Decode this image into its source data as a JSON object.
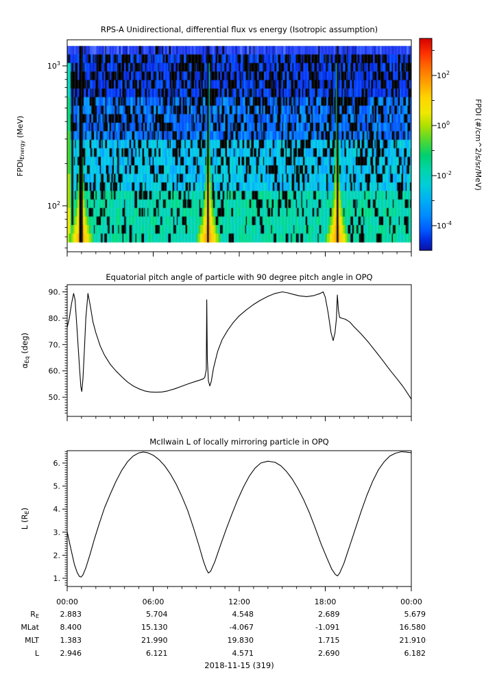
{
  "figure": {
    "kind": "three-panel scientific time-series figure, white background, black axes",
    "date_label": "2018-11-15 (319)"
  },
  "panels": {
    "spectrogram": {
      "title": "RPS-A Unidirectional, differential flux vs energy (Isotropic assumption)",
      "ylabel": {
        "pre": "FPDI",
        "sub": "Energy",
        "post": " (MeV)"
      },
      "ytick_labels": [
        {
          "base": "10",
          "exp": "2"
        },
        {
          "base": "10",
          "exp": "3"
        }
      ],
      "colorbar": {
        "label": "FPDI (#/cm^2/s/sr/MeV)",
        "tick_labels": [
          {
            "base": "10",
            "exp": "2"
          },
          {
            "base": "10",
            "exp": "0"
          },
          {
            "base": "10",
            "exp": "-2"
          },
          {
            "base": "10",
            "exp": "-4"
          }
        ]
      }
    },
    "pitch": {
      "title": "Equatorial pitch angle of particle with 90 degree pitch angle in OPQ",
      "ylabel": {
        "pre": "α",
        "sub": "Eq",
        "post": " (deg)"
      },
      "ytick_labels": [
        "50.",
        "60.",
        "70.",
        "80.",
        "90."
      ]
    },
    "mcilwain": {
      "title": "McIlwain L of locally mirroring particle in OPQ",
      "ylabel": {
        "pre": "L (R",
        "sub": "E",
        "post": ")"
      },
      "ytick_labels": [
        "1.",
        "2.",
        "3.",
        "4.",
        "5.",
        "6."
      ]
    }
  },
  "xaxis": {
    "tick_labels": [
      "00:00",
      "06:00",
      "12:00",
      "18:00",
      "00:00"
    ],
    "hours": [
      0,
      6,
      12,
      18,
      24
    ]
  },
  "footer": {
    "rows": [
      {
        "label_pre": "R",
        "label_sub": "E",
        "values": [
          "2.883",
          "5.704",
          "4.548",
          "2.689",
          "5.679"
        ]
      },
      {
        "label_pre": "MLat",
        "label_sub": "",
        "values": [
          "8.400",
          "15.130",
          "-4.067",
          "-1.091",
          "16.580"
        ]
      },
      {
        "label_pre": "MLT",
        "label_sub": "",
        "values": [
          "1.383",
          "21.990",
          "19.830",
          "1.715",
          "21.910"
        ]
      },
      {
        "label_pre": "L",
        "label_sub": "",
        "values": [
          "2.946",
          "6.121",
          "4.571",
          "2.690",
          "6.182"
        ]
      }
    ]
  },
  "chart_data": [
    {
      "panel": "spectrogram",
      "type": "heatmap",
      "title": "RPS-A Unidirectional, differential flux vs energy (Isotropic assumption)",
      "xlabel_hours_range": [
        0,
        24
      ],
      "ylabel": "FPDI_Energy (MeV)",
      "yscale": "log",
      "axis_energy_range_MeV": [
        46,
        1535
      ],
      "data_energy_range_MeV": [
        55,
        1390
      ],
      "ytick_values_MeV": [
        100,
        1000
      ],
      "colorbar": {
        "label": "FPDI (#/cm^2/s/sr/MeV)",
        "scale": "log",
        "tick_values": [
          100,
          1,
          0.01,
          0.0001
        ],
        "minor_tick_exponents": [
          3,
          1,
          -1,
          -3
        ],
        "approx_value_range": [
          1e-05,
          3000
        ],
        "colormap": "jet",
        "gradient": [
          {
            "p": 0.0,
            "c": "#d40000"
          },
          {
            "p": 0.069,
            "c": "#ff3000"
          },
          {
            "p": 0.139,
            "c": "#ff6e00"
          },
          {
            "p": 0.21,
            "c": "#ffa100"
          },
          {
            "p": 0.281,
            "c": "#ffd600"
          },
          {
            "p": 0.351,
            "c": "#f0e800"
          },
          {
            "p": 0.41,
            "c": "#b0e000"
          },
          {
            "p": 0.481,
            "c": "#52d830"
          },
          {
            "p": 0.552,
            "c": "#00d070"
          },
          {
            "p": 0.622,
            "c": "#00d4ac"
          },
          {
            "p": 0.693,
            "c": "#00cdd8"
          },
          {
            "p": 0.764,
            "c": "#00aef4"
          },
          {
            "p": 0.834,
            "c": "#008cff"
          },
          {
            "p": 0.905,
            "c": "#0058ff"
          },
          {
            "p": 0.952,
            "c": "#002ce0"
          },
          {
            "p": 0.999,
            "c": "#0d12a0"
          }
        ]
      },
      "content_description": "Noisy blue/cyan/black column texture; solid blue band at highest energies; bright yellow-green fan-shaped flux enhancements (inner proton belt crossings) centered at perigee times, widening toward low energy, each with a narrow black data-gap column at its center.",
      "render": {
        "seed": 7,
        "n_rows": 23,
        "fan_times_h": [
          0.97,
          9.82,
          18.8
        ],
        "fan_gap_halfwidth_h": [
          0.1,
          0.05,
          0.06
        ],
        "black_column_times_h": [
          2.7,
          13.05,
          19.5
        ],
        "fan_palette": [
          "#ffaf00",
          "#ffd400",
          "#e9e800",
          "#a0df00",
          "#3ad628",
          "#00d878",
          "#00d8b8"
        ],
        "top_band_palette": [
          "#1d3af0",
          "#2e52ff",
          "#0b23c8",
          "#4a6bff",
          "#000000"
        ],
        "noise_palettes": [
          [
            "#0028dc",
            "#0040ff",
            "#0634f2",
            "#0050ff"
          ],
          [
            "#0050ff",
            "#0072ff",
            "#0096ff",
            "#0060fa"
          ],
          [
            "#00a8ff",
            "#00c6f2",
            "#00d2d4",
            "#00c8e6"
          ],
          [
            "#00d2c0",
            "#00d8a0",
            "#00dc84",
            "#00d4b6"
          ]
        ]
      }
    },
    {
      "panel": "pitch",
      "type": "line",
      "title": "Equatorial pitch angle of particle with 90 degree pitch angle in OPQ",
      "ylabel": "alpha_Eq (deg)",
      "ylim": [
        43.0,
        92.7
      ],
      "yticks": [
        50,
        60,
        70,
        80,
        90
      ],
      "line_color": "#000000",
      "x_hours": [
        0,
        0.15,
        0.3,
        0.45,
        0.55,
        0.7,
        0.85,
        0.95,
        1.02,
        1.1,
        1.2,
        1.3,
        1.45,
        1.6,
        1.8,
        2,
        2.3,
        2.6,
        3,
        3.4,
        3.8,
        4.2,
        4.6,
        5,
        5.4,
        5.8,
        6.2,
        6.6,
        7,
        7.5,
        8,
        8.5,
        9,
        9.3,
        9.5,
        9.6,
        9.7,
        9.735,
        9.77,
        9.85,
        9.95,
        10.05,
        10.2,
        10.5,
        10.8,
        11.2,
        11.6,
        12,
        12.5,
        13,
        13.5,
        14,
        14.5,
        15,
        15.4,
        15.8,
        16.2,
        16.7,
        17.2,
        17.6,
        17.85,
        18,
        18.2,
        18.4,
        18.55,
        18.68,
        18.78,
        18.84,
        18.92,
        19,
        19.15,
        19.4,
        19.7,
        20,
        20.5,
        21,
        21.5,
        22,
        22.5,
        23,
        23.4,
        23.7,
        24
      ],
      "y_deg": [
        76.5,
        80,
        85.5,
        89.4,
        87,
        75,
        62,
        54,
        52.2,
        57,
        68,
        80,
        89.4,
        85,
        78.5,
        74.5,
        69.5,
        66,
        62.5,
        60,
        57.8,
        55.8,
        54.3,
        53.2,
        52.4,
        52,
        51.9,
        52,
        52.4,
        53.2,
        54.2,
        55.2,
        56.1,
        56.6,
        57,
        57.6,
        60.5,
        87,
        65,
        56.2,
        54.3,
        56,
        61,
        67.5,
        71.8,
        75.5,
        78.5,
        80.9,
        83.2,
        85.2,
        86.9,
        88.3,
        89.4,
        90,
        89.6,
        89,
        88.5,
        88.2,
        88.6,
        89.3,
        90,
        88,
        82,
        74.5,
        71.5,
        74.5,
        80,
        88.8,
        83,
        80.3,
        80,
        79.6,
        78.6,
        76.8,
        74,
        70.9,
        67.5,
        64,
        60.4,
        57,
        54.2,
        51.8,
        49.3
      ]
    },
    {
      "panel": "mcilwain",
      "type": "line",
      "title": "McIlwain L of locally mirroring particle in OPQ",
      "ylabel": "L (R_E)",
      "ylim": [
        0.64,
        6.54
      ],
      "yticks": [
        1,
        2,
        3,
        4,
        5,
        6
      ],
      "line_color": "#000000",
      "x_hours": [
        0,
        0.25,
        0.5,
        0.7,
        0.85,
        0.97,
        1.1,
        1.3,
        1.6,
        1.9,
        2.2,
        2.6,
        3,
        3.4,
        3.8,
        4.2,
        4.6,
        5,
        5.3,
        5.6,
        6,
        6.4,
        6.8,
        7.2,
        7.6,
        8,
        8.4,
        8.8,
        9.2,
        9.5,
        9.7,
        9.85,
        10,
        10.3,
        10.7,
        11.1,
        11.5,
        11.9,
        12.3,
        12.7,
        13.1,
        13.5,
        14,
        14.5,
        14.9,
        15.3,
        15.7,
        16.1,
        16.5,
        16.9,
        17.3,
        17.7,
        18.1,
        18.45,
        18.7,
        18.85,
        19,
        19.3,
        19.7,
        20.1,
        20.5,
        20.9,
        21.3,
        21.7,
        22.1,
        22.5,
        22.9,
        23.3,
        23.6,
        24
      ],
      "y_L": [
        3.02,
        2.3,
        1.6,
        1.25,
        1.08,
        1.05,
        1.15,
        1.45,
        2.05,
        2.7,
        3.3,
        4.05,
        4.65,
        5.2,
        5.68,
        6.05,
        6.3,
        6.44,
        6.48,
        6.45,
        6.34,
        6.15,
        5.88,
        5.52,
        5.08,
        4.55,
        3.95,
        3.2,
        2.4,
        1.75,
        1.4,
        1.23,
        1.3,
        1.72,
        2.45,
        3.15,
        3.8,
        4.42,
        4.97,
        5.43,
        5.78,
        6,
        6.08,
        6.03,
        5.88,
        5.63,
        5.3,
        4.88,
        4.4,
        3.83,
        3.18,
        2.5,
        1.9,
        1.4,
        1.17,
        1.1,
        1.22,
        1.65,
        2.4,
        3.15,
        3.9,
        4.6,
        5.2,
        5.7,
        6.05,
        6.3,
        6.43,
        6.49,
        6.48,
        6.45
      ]
    }
  ]
}
